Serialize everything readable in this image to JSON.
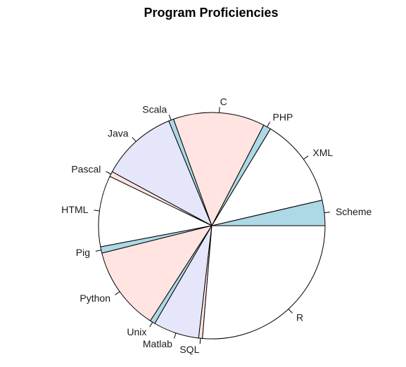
{
  "chart_data": {
    "type": "pie",
    "title": "Program Proficiencies",
    "direction": "counterclockwise",
    "start_angle_deg": 0,
    "categories": [
      "Scheme",
      "XML",
      "PHP",
      "C",
      "Scala",
      "Java",
      "Pascal",
      "HTML",
      "Pig",
      "Python",
      "Unix",
      "Matlab",
      "SQL",
      "R"
    ],
    "values": [
      2.0,
      7.0,
      0.6,
      7.2,
      0.4,
      6.0,
      0.4,
      5.6,
      0.5,
      6.6,
      0.4,
      3.6,
      0.3,
      14.5
    ],
    "colors": [
      "#add8e6",
      "#ffffff",
      "#add8e6",
      "#ffe4e1",
      "#add8e6",
      "#e6e6fa",
      "#ffe4e1",
      "#ffffff",
      "#add8e6",
      "#ffe4e1",
      "#add8e6",
      "#e6e6fa",
      "#ffe4e1",
      "#ffffff"
    ]
  }
}
